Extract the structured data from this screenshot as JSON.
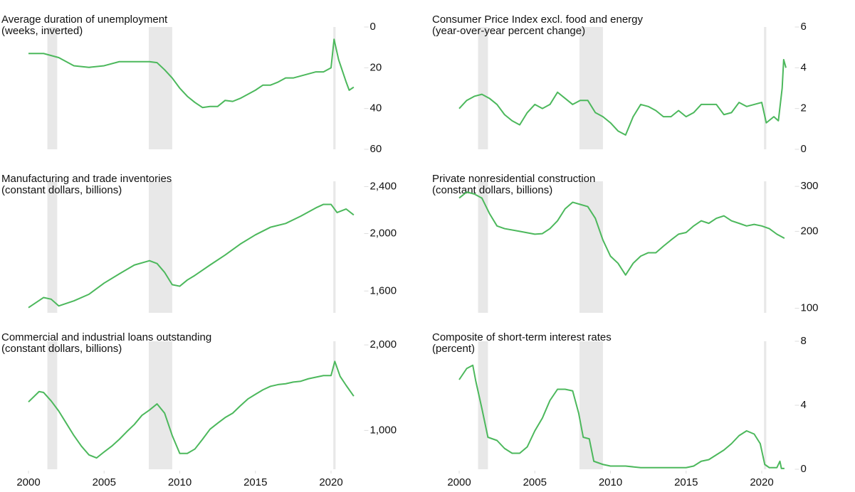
{
  "chart_data": [
    {
      "type": "line",
      "title": "Average duration of unemployment",
      "subtitle": "(weeks, inverted)",
      "color": "#4cb85c",
      "inverted": true,
      "xlim": [
        2000,
        2022
      ],
      "ylim": [
        0,
        60
      ],
      "yticks": [
        0,
        20,
        40,
        60
      ],
      "recessions": [
        [
          2001.25,
          2001.9
        ],
        [
          2007.95,
          2009.5
        ],
        [
          2020.15,
          2020.3
        ]
      ],
      "x": [
        2000,
        2001,
        2002,
        2003,
        2004,
        2005,
        2006,
        2007,
        2008,
        2008.5,
        2009,
        2009.5,
        2010,
        2010.5,
        2011,
        2011.5,
        2012,
        2012.5,
        2013,
        2013.5,
        2014,
        2014.5,
        2015,
        2015.5,
        2016,
        2016.5,
        2017,
        2017.5,
        2018,
        2018.5,
        2019,
        2019.5,
        2020,
        2020.2,
        2020.5,
        2021,
        2021.2,
        2021.5
      ],
      "values": [
        13,
        13,
        15,
        19,
        19.8,
        19,
        17,
        17,
        17,
        17.5,
        21,
        25,
        30,
        34,
        37,
        39.5,
        39,
        39,
        36,
        36.5,
        35,
        33,
        31,
        28.5,
        28.5,
        27,
        25,
        25,
        24,
        23,
        22,
        22,
        20,
        6,
        16,
        27,
        31,
        29.5
      ]
    },
    {
      "type": "line",
      "title": "Consumer Price Index excl. food and energy",
      "subtitle": "(year-over-year percent change)",
      "color": "#4cb85c",
      "xlim": [
        2000,
        2022
      ],
      "ylim": [
        0,
        6
      ],
      "yticks": [
        0,
        2,
        4,
        6
      ],
      "recessions": [
        [
          2001.25,
          2001.9
        ],
        [
          2007.95,
          2009.5
        ],
        [
          2020.15,
          2020.3
        ]
      ],
      "x": [
        2000,
        2000.5,
        2001,
        2001.5,
        2002,
        2002.5,
        2003,
        2003.5,
        2004,
        2004.5,
        2005,
        2005.5,
        2006,
        2006.5,
        2007,
        2007.5,
        2008,
        2008.5,
        2009,
        2009.5,
        2010,
        2010.5,
        2011,
        2011.5,
        2012,
        2012.5,
        2013,
        2013.5,
        2014,
        2014.5,
        2015,
        2015.5,
        2016,
        2016.5,
        2017,
        2017.5,
        2018,
        2018.5,
        2019,
        2019.5,
        2020,
        2020.3,
        2020.8,
        2021.1,
        2021.35,
        2021.45,
        2021.6
      ],
      "values": [
        2.0,
        2.4,
        2.6,
        2.7,
        2.5,
        2.2,
        1.7,
        1.4,
        1.2,
        1.8,
        2.2,
        2.0,
        2.2,
        2.8,
        2.5,
        2.2,
        2.4,
        2.4,
        1.8,
        1.6,
        1.3,
        0.9,
        0.7,
        1.6,
        2.2,
        2.1,
        1.9,
        1.6,
        1.6,
        1.9,
        1.6,
        1.8,
        2.2,
        2.2,
        2.2,
        1.7,
        1.8,
        2.3,
        2.1,
        2.2,
        2.3,
        1.3,
        1.6,
        1.4,
        3.0,
        4.4,
        4.0
      ]
    },
    {
      "type": "line",
      "title": "Manufacturing and trade inventories",
      "subtitle": "(constant dollars, billions)",
      "color": "#4cb85c",
      "log_scale": true,
      "xlim": [
        2000,
        2022
      ],
      "ylim": [
        1470,
        2450
      ],
      "yticks": [
        {
          "value": 1600,
          "label": "1,600"
        },
        {
          "value": 2000,
          "label": "2,000"
        },
        {
          "value": 2400,
          "label": "2,400"
        }
      ],
      "recessions": [
        [
          2001.25,
          2001.9
        ],
        [
          2007.95,
          2009.5
        ],
        [
          2020.15,
          2020.3
        ]
      ],
      "x": [
        2000,
        2001,
        2001.5,
        2002,
        2003,
        2004,
        2005,
        2006,
        2007,
        2008,
        2008.5,
        2009,
        2009.5,
        2010,
        2010.5,
        2011,
        2012,
        2013,
        2014,
        2015,
        2016,
        2017,
        2018,
        2019,
        2019.5,
        2020,
        2020.4,
        2021,
        2021.5
      ],
      "values": [
        1500,
        1560,
        1550,
        1510,
        1540,
        1580,
        1650,
        1710,
        1770,
        1800,
        1780,
        1720,
        1640,
        1630,
        1670,
        1700,
        1770,
        1840,
        1920,
        1990,
        2050,
        2080,
        2140,
        2210,
        2240,
        2240,
        2170,
        2200,
        2150
      ]
    },
    {
      "type": "line",
      "title": "Private nonresidential construction",
      "subtitle": "(constant dollars, billions)",
      "color": "#4cb85c",
      "log_scale": true,
      "xlim": [
        2000,
        2022
      ],
      "ylim": [
        96,
        314
      ],
      "yticks": [
        100,
        200,
        300
      ],
      "recessions": [
        [
          2001.25,
          2001.9
        ],
        [
          2007.95,
          2009.5
        ],
        [
          2020.15,
          2020.3
        ]
      ],
      "x": [
        2000,
        2000.5,
        2001,
        2001.5,
        2002,
        2002.5,
        2003,
        2004,
        2005,
        2005.5,
        2006,
        2006.5,
        2007,
        2007.5,
        2008,
        2008.5,
        2009,
        2009.5,
        2010,
        2010.5,
        2011,
        2011.5,
        2012,
        2012.5,
        2013,
        2013.5,
        2014,
        2014.5,
        2015,
        2015.5,
        2016,
        2016.5,
        2017,
        2017.5,
        2018,
        2018.5,
        2019,
        2019.5,
        2020,
        2020.5,
        2021,
        2021.5
      ],
      "values": [
        270,
        285,
        280,
        270,
        235,
        210,
        205,
        200,
        195,
        196,
        205,
        220,
        245,
        260,
        255,
        250,
        225,
        185,
        160,
        150,
        135,
        150,
        160,
        165,
        165,
        175,
        185,
        195,
        198,
        210,
        220,
        215,
        225,
        230,
        220,
        215,
        210,
        213,
        210,
        205,
        195,
        188
      ]
    },
    {
      "type": "line",
      "title": "Commercial and industrial loans outstanding",
      "subtitle": "(constant dollars, billions)",
      "color": "#4cb85c",
      "log_scale": true,
      "xlim": [
        2000,
        2022
      ],
      "ylim": [
        730,
        2060
      ],
      "yticks": [
        {
          "value": 1000,
          "label": "1,000"
        },
        {
          "value": 2000,
          "label": "2,000"
        }
      ],
      "xticks": [
        2000,
        2005,
        2010,
        2015,
        2020
      ],
      "recessions": [
        [
          2001.25,
          2001.9
        ],
        [
          2007.95,
          2009.5
        ],
        [
          2020.15,
          2020.3
        ]
      ],
      "x": [
        2000,
        2000.7,
        2001,
        2001.5,
        2002,
        2002.5,
        2003,
        2003.5,
        2004,
        2004.5,
        2005,
        2005.5,
        2006,
        2006.5,
        2007,
        2007.5,
        2008,
        2008.5,
        2009,
        2009.5,
        2010,
        2010.5,
        2011,
        2011.5,
        2012,
        2012.5,
        2013,
        2013.5,
        2014,
        2014.5,
        2015,
        2015.5,
        2016,
        2016.5,
        2017,
        2017.5,
        2018,
        2018.5,
        2019,
        2019.5,
        2020,
        2020.25,
        2020.6,
        2021,
        2021.5
      ],
      "values": [
        1260,
        1370,
        1360,
        1270,
        1170,
        1060,
        960,
        880,
        820,
        800,
        840,
        880,
        930,
        990,
        1050,
        1130,
        1180,
        1240,
        1150,
        960,
        830,
        830,
        860,
        930,
        1010,
        1060,
        1110,
        1150,
        1220,
        1290,
        1340,
        1390,
        1430,
        1450,
        1460,
        1480,
        1490,
        1520,
        1540,
        1560,
        1560,
        1750,
        1550,
        1440,
        1320
      ]
    },
    {
      "type": "line",
      "title": "Composite of short-term interest rates",
      "subtitle": "(percent)",
      "color": "#4cb85c",
      "xlim": [
        2000,
        2022
      ],
      "ylim": [
        0,
        8
      ],
      "yticks": [
        0,
        4,
        8
      ],
      "xticks": [
        2000,
        2005,
        2010,
        2015,
        2020
      ],
      "recessions": [
        [
          2001.25,
          2001.9
        ],
        [
          2007.95,
          2009.5
        ],
        [
          2020.15,
          2020.3
        ]
      ],
      "x": [
        2000,
        2000.5,
        2000.9,
        2001.1,
        2001.5,
        2001.9,
        2002.5,
        2003,
        2003.5,
        2004,
        2004.5,
        2005,
        2005.5,
        2006,
        2006.5,
        2007,
        2007.5,
        2007.9,
        2008.2,
        2008.6,
        2008.9,
        2009.5,
        2010,
        2011,
        2012,
        2013,
        2014,
        2015,
        2015.5,
        2016,
        2016.5,
        2017,
        2017.5,
        2018,
        2018.5,
        2019,
        2019.5,
        2019.9,
        2020.2,
        2020.5,
        2021,
        2021.2,
        2021.3,
        2021.5
      ],
      "values": [
        5.6,
        6.3,
        6.5,
        5.5,
        3.8,
        2.0,
        1.8,
        1.3,
        1.0,
        1.0,
        1.4,
        2.4,
        3.2,
        4.3,
        5.0,
        5.0,
        4.9,
        3.5,
        2.0,
        1.9,
        0.5,
        0.3,
        0.2,
        0.2,
        0.1,
        0.1,
        0.1,
        0.1,
        0.2,
        0.5,
        0.6,
        0.9,
        1.2,
        1.6,
        2.1,
        2.4,
        2.2,
        1.6,
        0.3,
        0.1,
        0.1,
        0.5,
        0.05,
        0.05
      ]
    }
  ]
}
